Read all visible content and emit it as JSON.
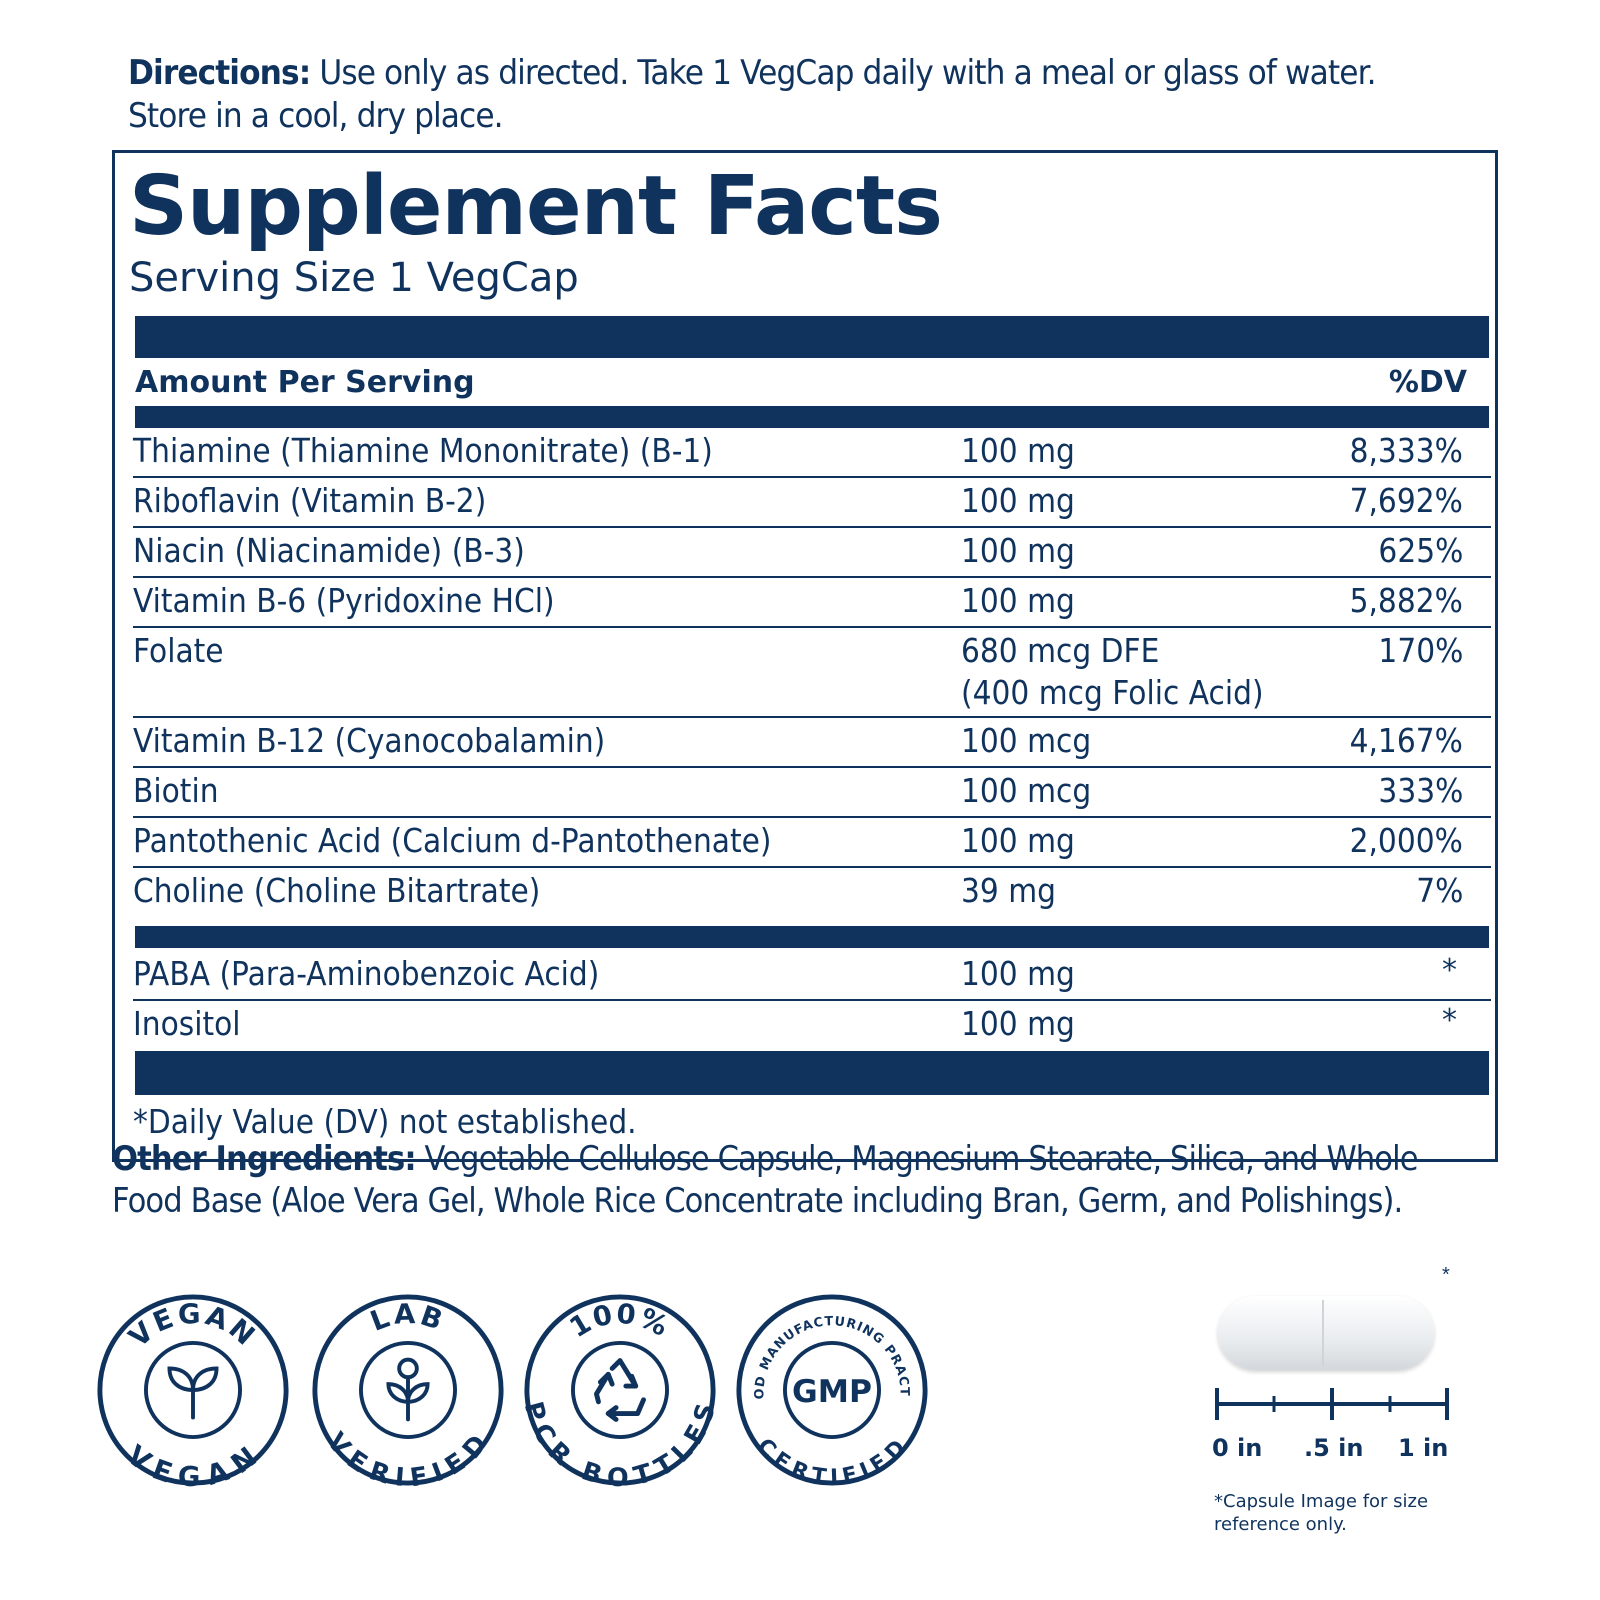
{
  "directions": {
    "label": "Directions:",
    "text": " Use only as directed. Take 1 VegCap daily with a meal or glass of water. Store in a cool, dry place."
  },
  "facts": {
    "title": "Supplement Facts",
    "serving_size": "Serving Size 1 VegCap",
    "amount_header": "Amount Per Serving",
    "dv_header": "%DV",
    "rows": [
      {
        "name": "Thiamine (Thiamine Mononitrate) (B-1)",
        "amount": "100 mg",
        "dv": "8,333%"
      },
      {
        "name": "Riboflavin (Vitamin B-2)",
        "amount": "100 mg",
        "dv": "7,692%"
      },
      {
        "name": "Niacin (Niacinamide) (B-3)",
        "amount": "100 mg",
        "dv": "625%"
      },
      {
        "name": "Vitamin B-6 (Pyridoxine HCl)",
        "amount": "100 mg",
        "dv": "5,882%"
      },
      {
        "name": "Folate",
        "amount": "680 mcg DFE",
        "amount2": "(400 mcg Folic Acid)",
        "dv": "170%"
      },
      {
        "name": "Vitamin B-12 (Cyanocobalamin)",
        "amount": "100 mcg",
        "dv": "4,167%"
      },
      {
        "name": "Biotin",
        "amount": "100 mcg",
        "dv": "333%"
      },
      {
        "name": "Pantothenic Acid (Calcium d-Pantothenate)",
        "amount": "100 mg",
        "dv": "2,000%"
      },
      {
        "name": "Choline (Choline Bitartrate)",
        "amount": "39 mg",
        "dv": "7%"
      }
    ],
    "rows_no_dv": [
      {
        "name": "PABA (Para-Aminobenzoic Acid)",
        "amount": "100 mg",
        "dv": "*"
      },
      {
        "name": "Inositol",
        "amount": "100 mg",
        "dv": "*"
      }
    ],
    "footnote": "*Daily Value (DV) not established."
  },
  "other_ingredients": {
    "label": "Other Ingredients:",
    "text": " Vegetable Cellulose Capsule, Magnesium Stearate, Silica, and Whole Food Base (Aloe Vera Gel, Whole Rice Concentrate including Bran, Germ, and Polishings)."
  },
  "badges": {
    "vegan": {
      "top": "VEGAN",
      "bottom": "VEGAN"
    },
    "lab": {
      "top": "LAB",
      "bottom": "VERIFIED"
    },
    "pcr": {
      "top": "100%",
      "bottom": "PCR BOTTLES"
    },
    "gmp": {
      "center": "GMP",
      "top": "GOOD MANUFACTURING PRACTICE",
      "bottom": "CERTIFIED"
    }
  },
  "capsule": {
    "star": "*",
    "ruler_labels": [
      "0 in",
      ".5 in",
      "1 in"
    ],
    "note": "*Capsule Image for size reference only."
  },
  "colors": {
    "navy": "#10335e",
    "background": "#ffffff"
  }
}
